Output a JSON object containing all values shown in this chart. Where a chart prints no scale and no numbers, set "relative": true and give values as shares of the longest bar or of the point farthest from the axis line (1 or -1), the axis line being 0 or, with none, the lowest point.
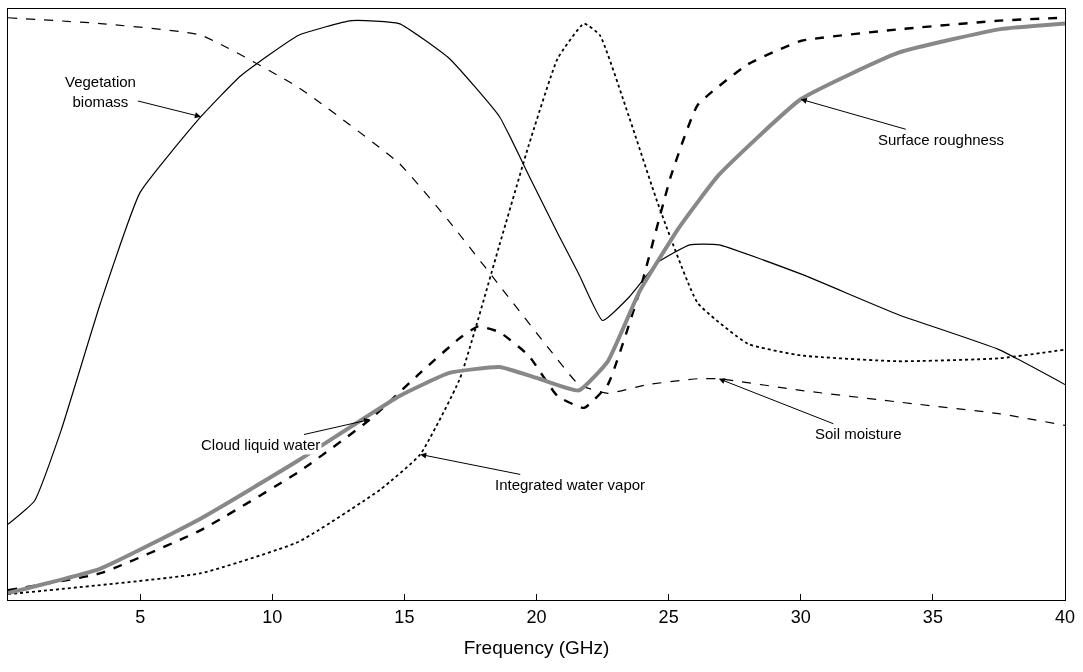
{
  "chart_data": {
    "type": "line",
    "relative": true,
    "xlabel": "Frequency (GHz)",
    "xlim": [
      0,
      40
    ],
    "xticks": [
      5,
      10,
      15,
      20,
      25,
      30,
      35,
      40
    ],
    "tick_labels": "x",
    "series": [
      {
        "color": "#000000",
        "line_style": "solid",
        "x": [
          0,
          1,
          2,
          3.5,
          5,
          7.3,
          8.8,
          11,
          13,
          14.8,
          16.7,
          18.6,
          19.7,
          20.8,
          21.6,
          22.5,
          23.5,
          24.6,
          25.8,
          26.9,
          30,
          33.7,
          37.5,
          40
        ],
        "values": [
          0.13,
          0.17,
          0.29,
          0.51,
          0.7,
          0.83,
          0.9,
          0.97,
          0.995,
          0.99,
          0.93,
          0.83,
          0.73,
          0.63,
          0.56,
          0.48,
          0.52,
          0.58,
          0.61,
          0.61,
          0.56,
          0.49,
          0.43,
          0.37
        ]
      },
      {
        "color": "#000000",
        "line_style": "dashed",
        "x": [
          0,
          3.5,
          7.3,
          11,
          14.8,
          16.7,
          18.6,
          20.5,
          21.6,
          22.7,
          24.2,
          26.1,
          26.9,
          30,
          33.7,
          37.5,
          40
        ],
        "values": [
          1.0,
          0.99,
          0.97,
          0.88,
          0.75,
          0.65,
          0.54,
          0.43,
          0.37,
          0.355,
          0.37,
          0.38,
          0.38,
          0.36,
          0.34,
          0.32,
          0.3
        ]
      },
      {
        "color": "#000000",
        "line_style": "dashed",
        "x": [
          0,
          3.5,
          7.3,
          11,
          13.7,
          15.6,
          17.1,
          17.8,
          18.6,
          19.7,
          20.8,
          21.8,
          22.7,
          23.9,
          25.1,
          26.1,
          28,
          30,
          33.7,
          37.5,
          40
        ],
        "values": [
          0.017,
          0.046,
          0.12,
          0.22,
          0.31,
          0.39,
          0.45,
          0.47,
          0.46,
          0.42,
          0.35,
          0.33,
          0.37,
          0.53,
          0.73,
          0.85,
          0.92,
          0.96,
          0.98,
          0.995,
          1.0
        ]
      },
      {
        "color": "#000000",
        "line_style": "dotted",
        "x": [
          0,
          7.3,
          11,
          14.1,
          15.6,
          17.1,
          18.6,
          19.7,
          20.8,
          21.8,
          22.4,
          23.5,
          24.6,
          26.1,
          28,
          30,
          33.7,
          37.5,
          40
        ],
        "values": [
          0.01,
          0.046,
          0.1,
          0.19,
          0.25,
          0.38,
          0.61,
          0.78,
          0.93,
          0.99,
          0.97,
          0.83,
          0.68,
          0.51,
          0.44,
          0.42,
          0.41,
          0.415,
          0.43
        ]
      },
      {
        "color": "#888888",
        "line_style": "solid",
        "x": [
          0,
          3.5,
          7.3,
          11,
          14.8,
          16.7,
          18.6,
          20.1,
          21.6,
          22.7,
          23.9,
          25.4,
          26.9,
          30,
          33.7,
          37.5,
          40
        ],
        "values": [
          0.012,
          0.054,
          0.14,
          0.24,
          0.35,
          0.39,
          0.4,
          0.38,
          0.36,
          0.41,
          0.53,
          0.64,
          0.73,
          0.86,
          0.94,
          0.98,
          0.99
        ]
      }
    ],
    "annotations": [
      {
        "text": "Vegetation\nbiomass",
        "x": 7.3,
        "y": 0.83
      },
      {
        "text": "Cloud liquid water",
        "x": 13.7,
        "y": 0.31
      },
      {
        "text": "Integrated water vapor",
        "x": 15.6,
        "y": 0.25
      },
      {
        "text": "Surface roughness",
        "x": 30,
        "y": 0.86
      },
      {
        "text": "Soil moisture",
        "x": 26.9,
        "y": 0.38
      }
    ]
  }
}
